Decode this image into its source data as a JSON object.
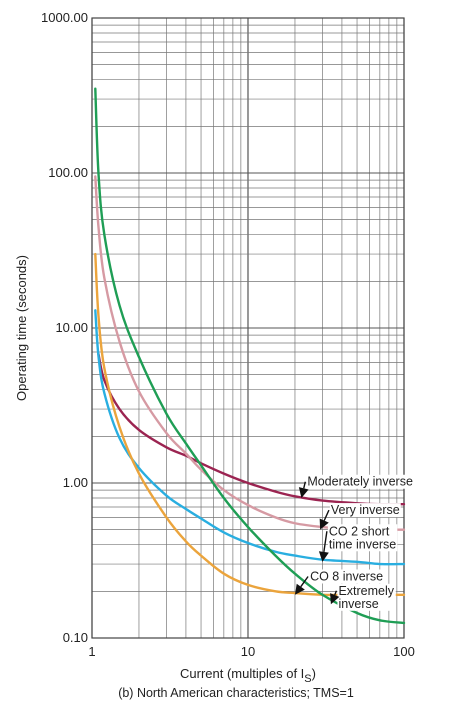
{
  "chart_data": {
    "type": "line",
    "x_scale": "log",
    "y_scale": "log",
    "xlim": [
      1,
      100
    ],
    "ylim": [
      0.1,
      1000
    ],
    "grid": true,
    "xlabel": "Current (multiples of I",
    "xlabel_sub": "S",
    "xlabel_end": ")",
    "ylabel": "Operating time (seconds)",
    "x_ticks": [
      {
        "value": 1,
        "label": "1"
      },
      {
        "value": 10,
        "label": "10"
      },
      {
        "value": 100,
        "label": "100"
      }
    ],
    "y_ticks": [
      {
        "value": 0.1,
        "label": "0.10"
      },
      {
        "value": 1,
        "label": "1.00"
      },
      {
        "value": 10,
        "label": "10.00"
      },
      {
        "value": 100,
        "label": "100.00"
      },
      {
        "value": 1000,
        "label": "1000.00"
      }
    ],
    "series": [
      {
        "name": "Moderately inverse",
        "color": "#9b2451",
        "x": [
          1.1,
          1.2,
          1.5,
          2,
          3,
          4,
          5,
          7,
          10,
          15,
          20,
          30,
          50,
          70,
          100
        ],
        "y": [
          6.8,
          4.6,
          3.0,
          2.2,
          1.7,
          1.5,
          1.34,
          1.15,
          1.0,
          0.88,
          0.82,
          0.77,
          0.74,
          0.73,
          0.73
        ]
      },
      {
        "name": "Very inverse",
        "color": "#d69aa3",
        "x": [
          1.05,
          1.1,
          1.2,
          1.5,
          2,
          3,
          4,
          5,
          7,
          10,
          15,
          20,
          30,
          50,
          70,
          100
        ],
        "y": [
          95,
          45,
          21,
          8.2,
          3.9,
          2.1,
          1.55,
          1.22,
          0.9,
          0.72,
          0.6,
          0.55,
          0.52,
          0.5,
          0.5,
          0.5
        ]
      },
      {
        "name": "CO 2 short time inverse",
        "color": "#29aee0",
        "x": [
          1.05,
          1.1,
          1.2,
          1.5,
          2,
          3,
          4,
          5,
          7,
          10,
          15,
          20,
          30,
          50,
          70,
          100
        ],
        "y": [
          13,
          6.6,
          3.8,
          1.95,
          1.25,
          0.83,
          0.68,
          0.59,
          0.48,
          0.41,
          0.36,
          0.34,
          0.32,
          0.31,
          0.3,
          0.3
        ]
      },
      {
        "name": "CO 8 inverse",
        "color": "#eba43c",
        "x": [
          1.05,
          1.1,
          1.2,
          1.5,
          2,
          3,
          4,
          5,
          7,
          10,
          15,
          20,
          30,
          50,
          70,
          100
        ],
        "y": [
          30,
          12,
          5.5,
          2.3,
          1.15,
          0.6,
          0.42,
          0.34,
          0.26,
          0.22,
          0.2,
          0.195,
          0.19,
          0.19,
          0.19,
          0.19
        ]
      },
      {
        "name": "Extremely inverse",
        "color": "#1f9e55",
        "x": [
          1.05,
          1.1,
          1.2,
          1.5,
          2,
          3,
          4,
          5,
          7,
          10,
          15,
          20,
          30,
          50,
          70,
          100
        ],
        "y": [
          350,
          100,
          40,
          14,
          6.5,
          2.8,
          1.8,
          1.3,
          0.8,
          0.52,
          0.34,
          0.26,
          0.19,
          0.145,
          0.13,
          0.125
        ]
      }
    ],
    "annotations": [
      {
        "lines": [
          "Moderately inverse"
        ],
        "series": 0,
        "arrow_to": [
          22,
          0.8
        ],
        "text_at": [
          24,
          0.96
        ]
      },
      {
        "lines": [
          "Very inverse"
        ],
        "series": 1,
        "arrow_to": [
          29,
          0.5
        ],
        "text_at": [
          34,
          0.63
        ]
      },
      {
        "lines": [
          "CO 2 short",
          "time inverse"
        ],
        "series": 2,
        "arrow_to": [
          30,
          0.31
        ],
        "text_at": [
          33,
          0.46
        ]
      },
      {
        "lines": [
          "CO 8 inverse"
        ],
        "series": 3,
        "arrow_to": [
          20,
          0.19
        ],
        "text_at": [
          25,
          0.235
        ]
      },
      {
        "lines": [
          "Extremely",
          "inverse"
        ],
        "series": 4,
        "arrow_to": [
          34,
          0.165
        ],
        "text_at": [
          38,
          0.19
        ]
      }
    ],
    "caption": "(b) North American characteristics; TMS=1"
  }
}
